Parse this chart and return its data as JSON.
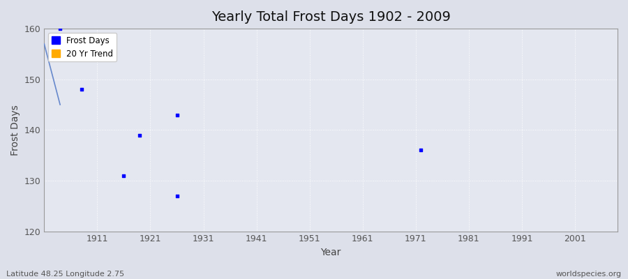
{
  "title": "Yearly Total Frost Days 1902 - 2009",
  "xlabel": "Year",
  "ylabel": "Frost Days",
  "xlim": [
    1901,
    2009
  ],
  "ylim": [
    120,
    160
  ],
  "yticks": [
    120,
    130,
    140,
    150,
    160
  ],
  "xticks": [
    1911,
    1921,
    1931,
    1941,
    1951,
    1961,
    1971,
    1981,
    1991,
    2001
  ],
  "scatter_x": [
    1904,
    1908,
    1916,
    1919,
    1926,
    1972
  ],
  "scatter_y": [
    160,
    148,
    131,
    139,
    143,
    136
  ],
  "scatter_x2": [
    1926
  ],
  "scatter_y2": [
    127
  ],
  "scatter_color": "#0000ff",
  "trend_x": [
    1901,
    1904
  ],
  "trend_y": [
    157,
    145
  ],
  "trend_color": "#6688cc",
  "bg_color": "#dde0ea",
  "plot_bg": "#e4e7f0",
  "grid_color": "#ffffff",
  "footer_left": "Latitude 48.25 Longitude 2.75",
  "footer_right": "worldspecies.org",
  "legend_frost_color": "#0000ff",
  "legend_trend_color": "#ffaa00",
  "title_fontsize": 14
}
